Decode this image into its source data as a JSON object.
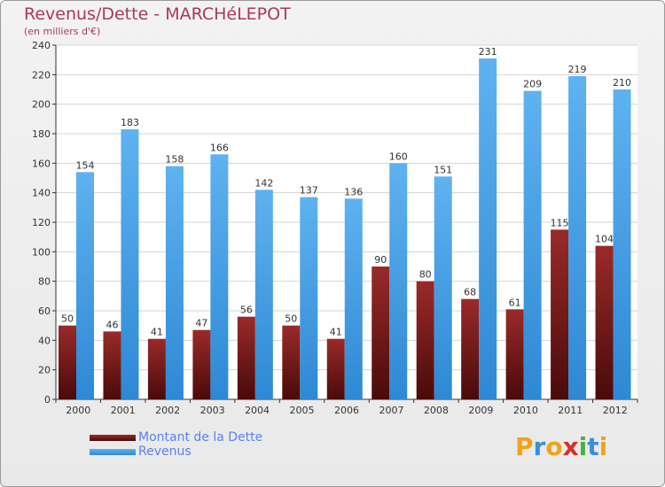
{
  "header": {
    "title": "Revenus/Dette - MARCHéLEPOT",
    "subtitle": "(en milliers d'€)"
  },
  "legend": {
    "items": [
      {
        "label": "Montant de la Dette",
        "color": "#7a1717"
      },
      {
        "label": "Revenus",
        "color": "#4aa3e6"
      }
    ]
  },
  "logo": {
    "text": "Proxiti",
    "letters": [
      {
        "ch": "P",
        "color": "#f0a31a"
      },
      {
        "ch": "r",
        "color": "#3a8fd8"
      },
      {
        "ch": "o",
        "color": "#f0a31a"
      },
      {
        "ch": "x",
        "color": "#d8302a"
      },
      {
        "ch": "i",
        "color": "#4ab040"
      },
      {
        "ch": "t",
        "color": "#3a8fd8"
      },
      {
        "ch": "i",
        "color": "#f0a31a"
      }
    ]
  },
  "chart_data": {
    "type": "bar",
    "categories": [
      "2000",
      "2001",
      "2002",
      "2003",
      "2004",
      "2005",
      "2006",
      "2007",
      "2008",
      "2009",
      "2010",
      "2011",
      "2012"
    ],
    "series": [
      {
        "name": "Montant de la Dette",
        "color": "#7a1717",
        "values": [
          50,
          46,
          41,
          47,
          56,
          50,
          41,
          90,
          80,
          68,
          61,
          115,
          104
        ]
      },
      {
        "name": "Revenus",
        "color": "#4aa3e6",
        "values": [
          154,
          183,
          158,
          166,
          142,
          137,
          136,
          160,
          151,
          231,
          209,
          219,
          210
        ]
      }
    ],
    "title": "Revenus/Dette - MARCHéLEPOT",
    "ylabel": "(en milliers d'€)",
    "ylim": [
      0,
      240
    ],
    "yticks": [
      0,
      20,
      40,
      60,
      80,
      100,
      120,
      140,
      160,
      180,
      200,
      220,
      240
    ],
    "grid": true
  }
}
